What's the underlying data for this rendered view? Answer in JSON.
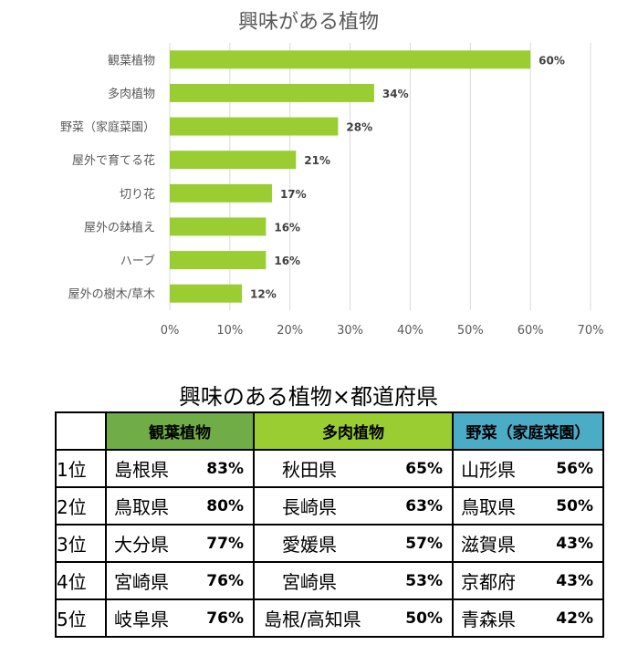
{
  "chart_data": {
    "type": "bar",
    "orientation": "horizontal",
    "title": "興味がある植物",
    "categories": [
      "観葉植物",
      "多肉植物",
      "野菜（家庭菜園）",
      "屋外で育てる花",
      "切り花",
      "屋外の鉢植え",
      "ハーブ",
      "屋外の樹木/草木"
    ],
    "values": [
      60,
      34,
      28,
      21,
      17,
      16,
      16,
      12
    ],
    "value_labels": [
      "60%",
      "34%",
      "28%",
      "21%",
      "17%",
      "16%",
      "16%",
      "12%"
    ],
    "xlim": [
      0,
      70
    ],
    "x_ticks": [
      "0%",
      "10%",
      "20%",
      "30%",
      "40%",
      "50%",
      "60%",
      "70%"
    ],
    "grid": true,
    "bar_color": "#9acd32"
  },
  "table": {
    "title": "興味のある植物×都道府県",
    "headers": [
      "観葉植物",
      "多肉植物",
      "野菜（家庭菜園）"
    ],
    "header_colors": [
      "#70ad47",
      "#9acd32",
      "#4bacc6"
    ],
    "rows": [
      {
        "rank": "1位",
        "c1_pref": "島根県",
        "c1_pct": "83%",
        "c2_pref": "秋田県",
        "c2_pct": "65%",
        "c3_pref": "山形県",
        "c3_pct": "56%"
      },
      {
        "rank": "2位",
        "c1_pref": "鳥取県",
        "c1_pct": "80%",
        "c2_pref": "長崎県",
        "c2_pct": "63%",
        "c3_pref": "鳥取県",
        "c3_pct": "50%"
      },
      {
        "rank": "3位",
        "c1_pref": "大分県",
        "c1_pct": "77%",
        "c2_pref": "愛媛県",
        "c2_pct": "57%",
        "c3_pref": "滋賀県",
        "c3_pct": "43%"
      },
      {
        "rank": "4位",
        "c1_pref": "宮崎県",
        "c1_pct": "76%",
        "c2_pref": "宮崎県",
        "c2_pct": "53%",
        "c3_pref": "京都府",
        "c3_pct": "43%"
      },
      {
        "rank": "5位",
        "c1_pref": "岐阜県",
        "c1_pct": "76%",
        "c2_pref": "島根/高知県",
        "c2_pct": "50%",
        "c3_pref": "青森県",
        "c3_pct": "42%"
      }
    ]
  }
}
